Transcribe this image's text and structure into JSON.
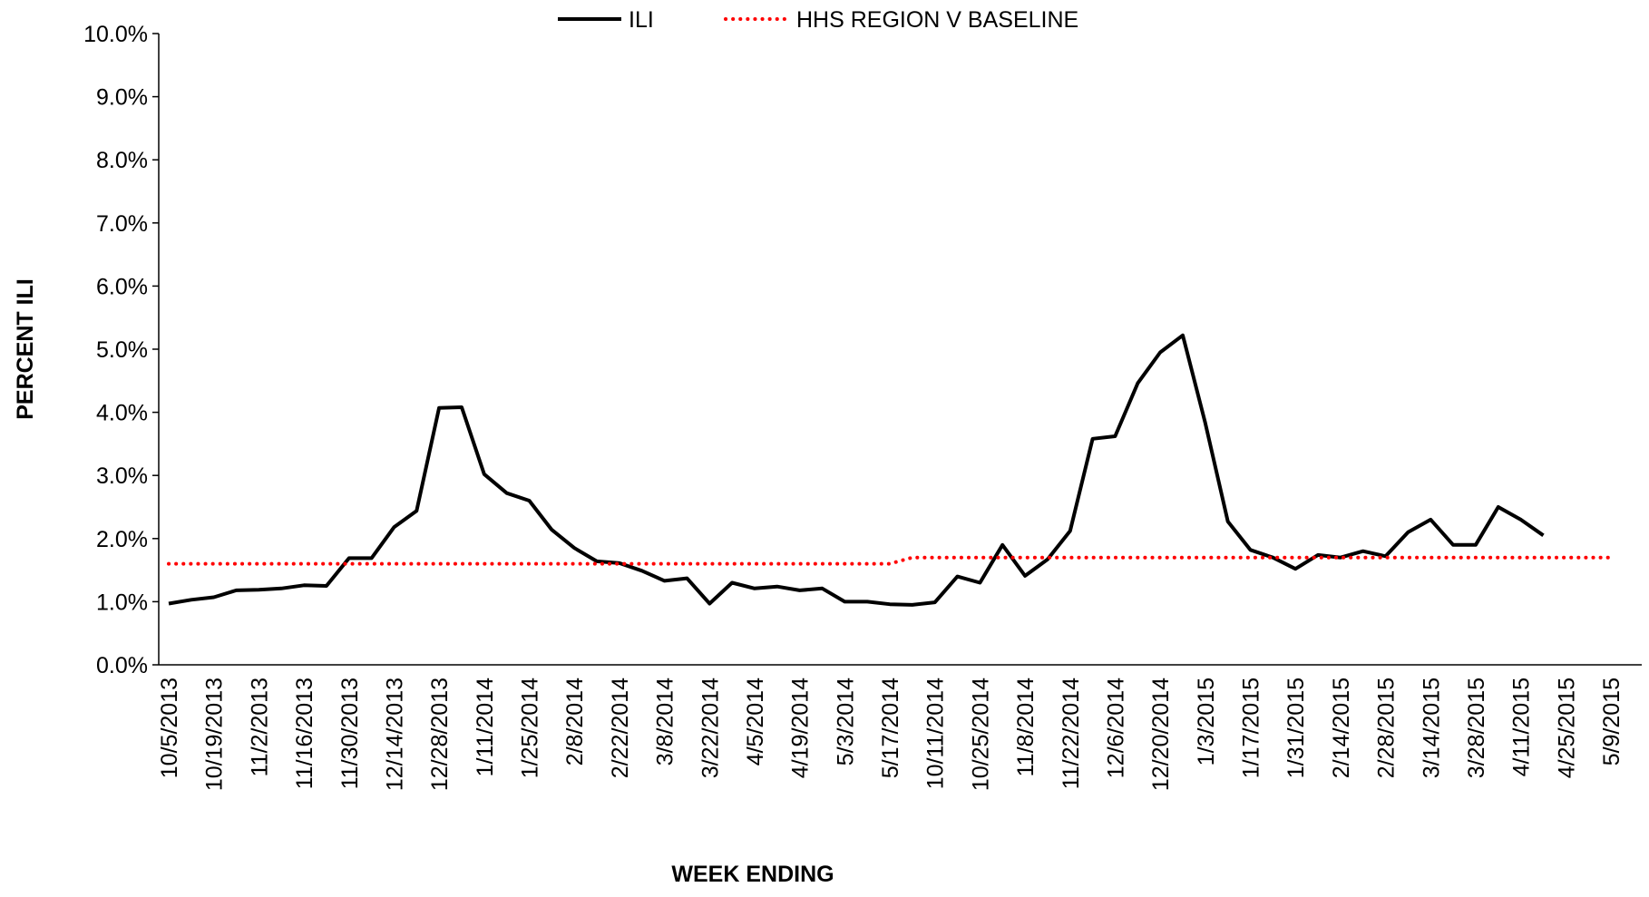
{
  "chart_data": {
    "type": "line",
    "x_label": "WEEK ENDING",
    "y_label": "PERCENT ILI",
    "categories": [
      "10/5/2013",
      null,
      "10/19/2013",
      null,
      "11/2/2013",
      null,
      "11/16/2013",
      null,
      "11/30/2013",
      null,
      "12/14/2013",
      null,
      "12/28/2013",
      null,
      "1/11/2014",
      null,
      "1/25/2014",
      null,
      "2/8/2014",
      null,
      "2/22/2014",
      null,
      "3/8/2014",
      null,
      "3/22/2014",
      null,
      "4/5/2014",
      null,
      "4/19/2014",
      null,
      "5/3/2014",
      null,
      "5/17/2014",
      null,
      "10/11/2014",
      null,
      "10/25/2014",
      null,
      "11/8/2014",
      null,
      "11/22/2014",
      null,
      "12/6/2014",
      null,
      "12/20/2014",
      null,
      "1/3/2015",
      null,
      "1/17/2015",
      null,
      "1/31/2015",
      null,
      "2/14/2015",
      null,
      "2/28/2015",
      null,
      "3/14/2015",
      null,
      "3/28/2015",
      null,
      "4/11/2015",
      null,
      "4/25/2015",
      null,
      "5/9/2015"
    ],
    "series": [
      {
        "name": "ILI",
        "color": "#000000",
        "style": "solid",
        "values": [
          0.97,
          1.03,
          1.07,
          1.18,
          1.19,
          1.21,
          1.26,
          1.25,
          1.69,
          1.69,
          2.18,
          2.44,
          4.07,
          4.08,
          3.02,
          2.72,
          2.6,
          2.14,
          1.85,
          1.64,
          1.61,
          1.49,
          1.33,
          1.37,
          0.97,
          1.3,
          1.21,
          1.24,
          1.18,
          1.21,
          1.0,
          1.0,
          0.96,
          0.95,
          0.99,
          1.4,
          1.3,
          1.9,
          1.41,
          1.67,
          2.12,
          3.58,
          3.62,
          4.46,
          4.95,
          5.22,
          3.83,
          2.27,
          1.82,
          1.7,
          1.52,
          1.74,
          1.7,
          1.8,
          1.72,
          2.1,
          2.3,
          1.9,
          1.9,
          2.5,
          2.3,
          2.05,
          null,
          null,
          null
        ]
      },
      {
        "name": "HHS REGION V BASELINE",
        "color": "#ff0000",
        "style": "dotted",
        "values": [
          1.6,
          1.6,
          1.6,
          1.6,
          1.6,
          1.6,
          1.6,
          1.6,
          1.6,
          1.6,
          1.6,
          1.6,
          1.6,
          1.6,
          1.6,
          1.6,
          1.6,
          1.6,
          1.6,
          1.6,
          1.6,
          1.6,
          1.6,
          1.6,
          1.6,
          1.6,
          1.6,
          1.6,
          1.6,
          1.6,
          1.6,
          1.6,
          1.6,
          1.7,
          1.7,
          1.7,
          1.7,
          1.7,
          1.7,
          1.7,
          1.7,
          1.7,
          1.7,
          1.7,
          1.7,
          1.7,
          1.7,
          1.7,
          1.7,
          1.7,
          1.7,
          1.7,
          1.7,
          1.7,
          1.7,
          1.7,
          1.7,
          1.7,
          1.7,
          1.7,
          1.7,
          1.7,
          1.7,
          1.7,
          1.7
        ]
      }
    ],
    "ylim": [
      0,
      10
    ],
    "yticks": [
      {
        "value": 0,
        "label": "0.0%"
      },
      {
        "value": 1,
        "label": "1.0%"
      },
      {
        "value": 2,
        "label": "2.0%"
      },
      {
        "value": 3,
        "label": "3.0%"
      },
      {
        "value": 4,
        "label": "4.0%"
      },
      {
        "value": 5,
        "label": "5.0%"
      },
      {
        "value": 6,
        "label": "6.0%"
      },
      {
        "value": 7,
        "label": "7.0%"
      },
      {
        "value": 8,
        "label": "8.0%"
      },
      {
        "value": 9,
        "label": "9.0%"
      },
      {
        "value": 10,
        "label": "10.0%"
      }
    ],
    "grid": false,
    "legend": "top"
  }
}
